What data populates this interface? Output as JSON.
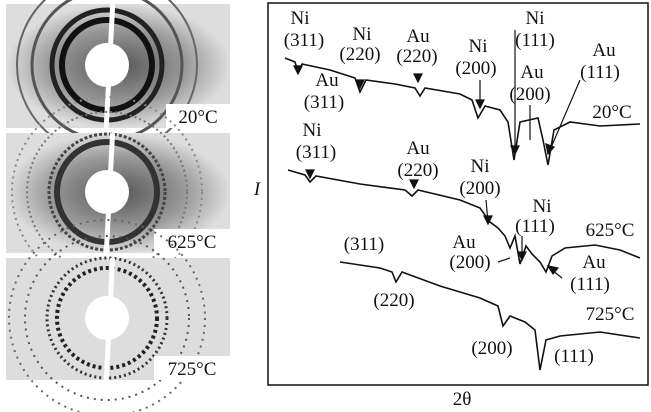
{
  "panels": [
    {
      "label": "20°C"
    },
    {
      "label": "625°C"
    },
    {
      "label": "725°C"
    }
  ],
  "plot": {
    "y_label": "I",
    "x_label": "2θ",
    "curves": [
      {
        "temperature": "20°C",
        "peaks": [
          {
            "element": "Ni",
            "index": "(311)"
          },
          {
            "element": "Au",
            "index": "(311)"
          },
          {
            "element": "Ni",
            "index": "(220)"
          },
          {
            "element": "Au",
            "index": "(220)"
          },
          {
            "element": "Ni",
            "index": "(200)"
          },
          {
            "element": "Ni",
            "index": "(111)"
          },
          {
            "element": "Au",
            "index": "(200)"
          },
          {
            "element": "Au",
            "index": "(111)"
          }
        ]
      },
      {
        "temperature": "625°C",
        "peaks": [
          {
            "element": "Ni",
            "index": "(311)"
          },
          {
            "element": "Au",
            "index": "(220)"
          },
          {
            "element": "Ni",
            "index": "(200)"
          },
          {
            "element": "Ni",
            "index": "(111)"
          },
          {
            "element": "Au",
            "index": "(200)"
          },
          {
            "element": "Au",
            "index": "(111)"
          }
        ]
      },
      {
        "temperature": "725°C",
        "peaks": [
          {
            "index": "(311)"
          },
          {
            "index": "(220)"
          },
          {
            "index": "(200)"
          },
          {
            "index": "(111)"
          }
        ]
      }
    ]
  }
}
